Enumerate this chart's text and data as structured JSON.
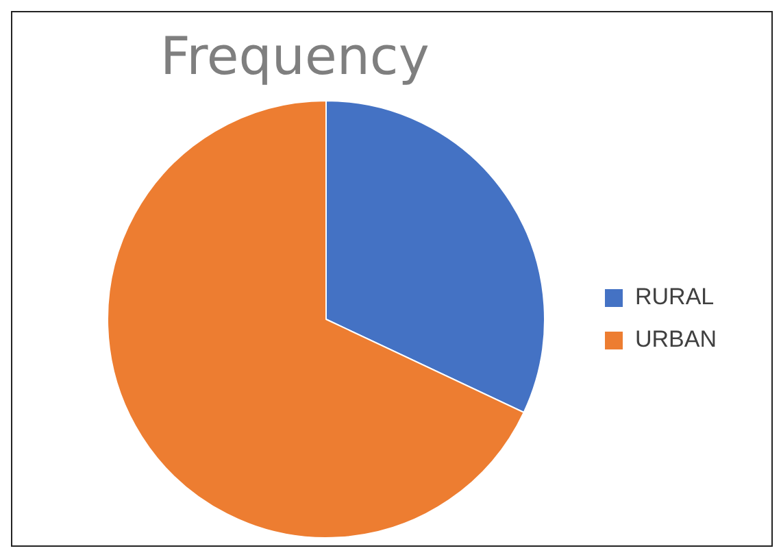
{
  "chart_data": {
    "type": "pie",
    "title": "Frequency",
    "categories": [
      "RURAL",
      "URBAN"
    ],
    "values": [
      32,
      68
    ],
    "colors": [
      "#4472c4",
      "#ed7d31"
    ],
    "legend": "right"
  }
}
